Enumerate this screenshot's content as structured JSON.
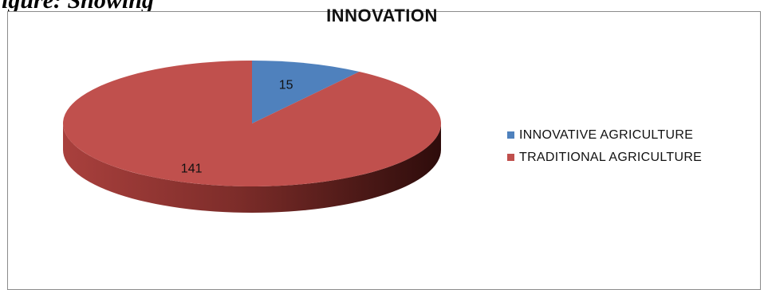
{
  "figure": {
    "caption_partial": "igure: Showing"
  },
  "chart_data": {
    "type": "pie",
    "title": "INNOVATION",
    "categories": [
      "INNOVATIVE AGRICULTURE",
      "TRADITIONAL AGRICULTURE"
    ],
    "values": [
      15,
      141
    ],
    "colors": [
      "#4f81bd",
      "#c0504d"
    ],
    "data_labels": [
      "15",
      "141"
    ],
    "legend_position": "right",
    "style": "3d"
  }
}
